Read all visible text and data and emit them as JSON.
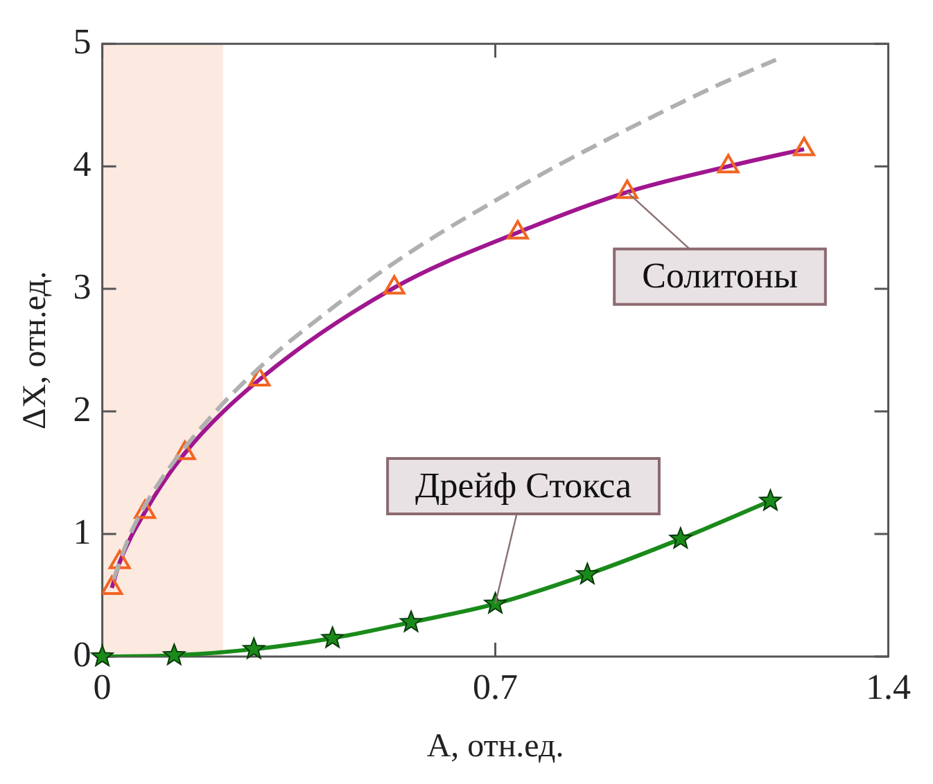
{
  "chart_data": {
    "type": "line",
    "xlabel": "A, отн.ед.",
    "ylabel": "ΔX, отн.ед.",
    "xlim": [
      0,
      1.4
    ],
    "xticks": [
      0,
      0.7,
      1.4
    ],
    "ylim": [
      0,
      5
    ],
    "yticks": [
      0,
      1,
      2,
      3,
      4,
      5
    ],
    "grid": false,
    "legend": false,
    "bands": [
      {
        "axis": "x",
        "from": 0,
        "to": 0.215,
        "color": "#fce9e0"
      }
    ],
    "series": [
      {
        "color": "#b0b0b0",
        "line_style": "dashed",
        "marker": "none",
        "x": [
          0.02,
          0.05,
          0.1,
          0.2,
          0.3,
          0.4,
          0.5,
          0.6,
          0.7,
          0.8,
          0.9,
          1.0,
          1.1,
          1.2
        ],
        "values": [
          0.63,
          1.0,
          1.41,
          1.99,
          2.44,
          2.81,
          3.15,
          3.45,
          3.72,
          3.98,
          4.22,
          4.45,
          4.67,
          4.87
        ]
      },
      {
        "name": "Солитоны",
        "color": "#a0168f",
        "marker": "triangle",
        "line_style": "solid",
        "x": [
          0.017,
          0.031,
          0.076,
          0.147,
          0.28,
          0.52,
          0.74,
          0.935,
          1.115,
          1.25
        ],
        "values": [
          0.56,
          0.77,
          1.18,
          1.66,
          2.26,
          3.01,
          3.46,
          3.79,
          4.0,
          4.14
        ]
      },
      {
        "name": "Дрейф Стокса",
        "color": "#1a8a1a",
        "marker": "star",
        "line_style": "solid",
        "x": [
          0,
          0.128,
          0.27,
          0.41,
          0.55,
          0.7,
          0.864,
          1.03,
          1.19
        ],
        "values": [
          0,
          0.01,
          0.06,
          0.15,
          0.28,
          0.43,
          0.67,
          0.96,
          1.27
        ]
      }
    ]
  }
}
